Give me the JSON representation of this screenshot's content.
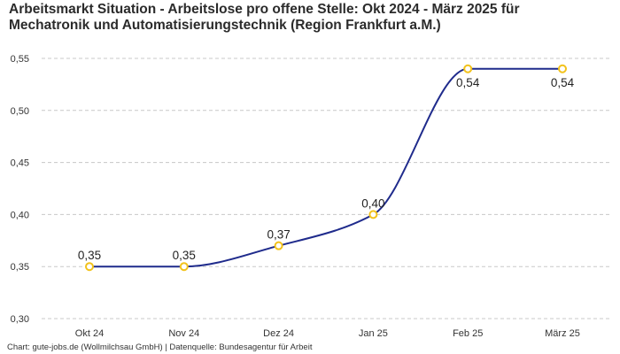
{
  "chart_data": {
    "type": "line",
    "title_lines": [
      "Arbeitsmarkt Situation - Arbeitslose pro offene Stelle: Okt 2024 - März 2025 für",
      "Mechatronik und Automatisierungstechnik (Region Frankfurt a.M.)"
    ],
    "categories": [
      "Okt 24",
      "Nov 24",
      "Dez 24",
      "Jan 25",
      "Feb 25",
      "März 25"
    ],
    "series": [
      {
        "name": "Arbeitslose pro offene Stelle",
        "values": [
          0.35,
          0.35,
          0.37,
          0.4,
          0.54,
          0.54
        ],
        "data_labels": [
          "0,35",
          "0,35",
          "0,37",
          "0,40",
          "0,54",
          "0,54"
        ]
      }
    ],
    "ylim": [
      0.3,
      0.55
    ],
    "yticks": [
      0.3,
      0.35,
      0.4,
      0.45,
      0.5,
      0.55
    ],
    "ytick_labels": [
      "0,30",
      "0,35",
      "0,40",
      "0,45",
      "0,50",
      "0,55"
    ],
    "grid": true,
    "xlabel": "",
    "ylabel": ""
  },
  "colors": {
    "line": "#1f2b8c",
    "marker_stroke": "#f2c21b",
    "marker_fill": "#ffffff",
    "grid": "#c8c8c8"
  },
  "source": "Chart: gute-jobs.de (Wollmilchsau GmbH) | Datenquelle: Bundesagentur für Arbeit"
}
